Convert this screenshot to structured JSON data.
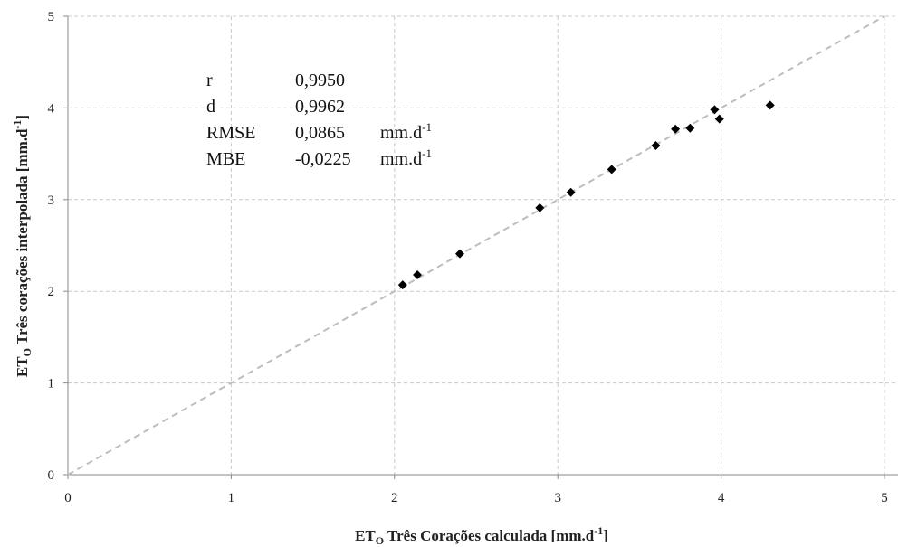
{
  "chart_data": {
    "type": "scatter",
    "xlabel": {
      "prefix": "ET",
      "sub": "O",
      "main": " Três Corações calculada [mm.d",
      "sup": "-1",
      "suffix": "]"
    },
    "ylabel": {
      "prefix": "ET",
      "sub": "O",
      "main": " Três corações interpolada [mm.d",
      "sup": "-1",
      "suffix": "]"
    },
    "xlim": [
      0,
      5
    ],
    "ylim": [
      0,
      5
    ],
    "x_ticks": [
      "0",
      "1",
      "2",
      "3",
      "4",
      "5"
    ],
    "y_ticks": [
      "0",
      "1",
      "2",
      "3",
      "4",
      "5"
    ],
    "grid": true,
    "reference_line": {
      "type": "1:1",
      "style": "dashed",
      "color": "#bdbdbd"
    },
    "marker_color": "#000000",
    "points": [
      {
        "x": 2.05,
        "y": 2.07
      },
      {
        "x": 2.14,
        "y": 2.18
      },
      {
        "x": 2.4,
        "y": 2.41
      },
      {
        "x": 2.89,
        "y": 2.91
      },
      {
        "x": 3.08,
        "y": 3.08
      },
      {
        "x": 3.33,
        "y": 3.33
      },
      {
        "x": 3.6,
        "y": 3.59
      },
      {
        "x": 3.72,
        "y": 3.77
      },
      {
        "x": 3.81,
        "y": 3.78
      },
      {
        "x": 3.96,
        "y": 3.98
      },
      {
        "x": 3.99,
        "y": 3.88
      },
      {
        "x": 4.3,
        "y": 4.03
      }
    ],
    "stats": [
      {
        "label": "r",
        "value": "0,9950",
        "unit": "",
        "unit_sup": ""
      },
      {
        "label": "d",
        "value": "0,9962",
        "unit": "",
        "unit_sup": ""
      },
      {
        "label": "RMSE",
        "value": "0,0865",
        "unit": "mm.d",
        "unit_sup": "-1"
      },
      {
        "label": "MBE",
        "value": "-0,0225",
        "unit": "mm.d",
        "unit_sup": "-1"
      }
    ]
  }
}
